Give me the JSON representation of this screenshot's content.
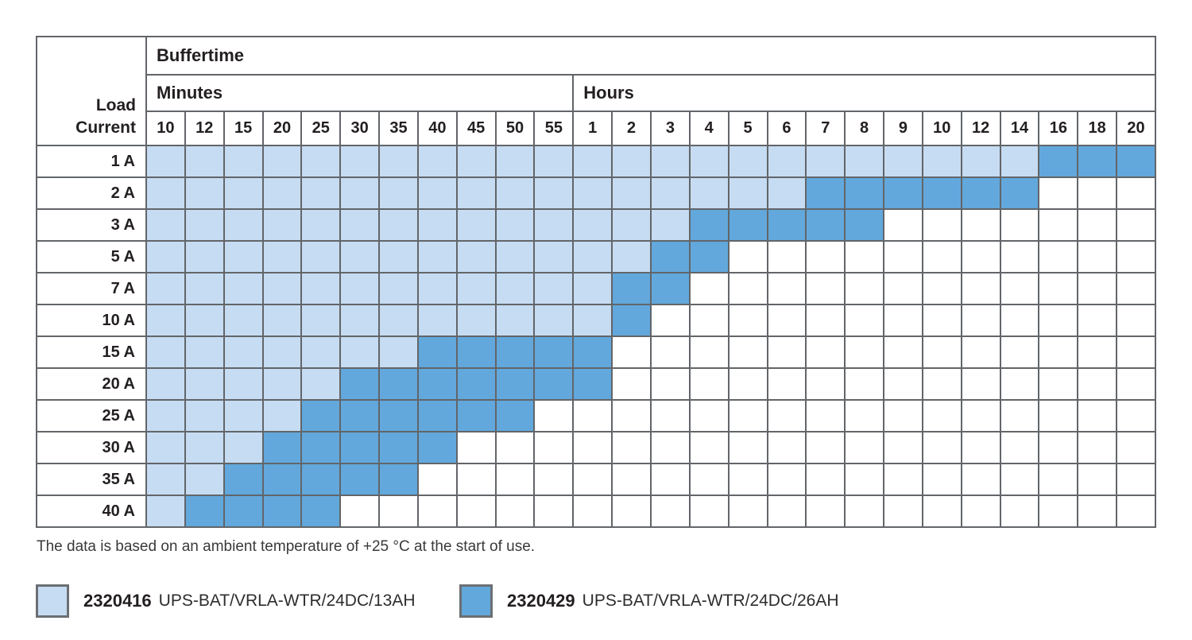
{
  "table": {
    "corner_label": [
      "Load",
      "Current"
    ],
    "buffertime_label": "Buffertime",
    "minutes_label": "Minutes",
    "hours_label": "Hours",
    "minute_cols": [
      "10",
      "12",
      "15",
      "20",
      "25",
      "30",
      "35",
      "40",
      "45",
      "50",
      "55"
    ],
    "hour_cols": [
      "1",
      "2",
      "3",
      "4",
      "5",
      "6",
      "7",
      "8",
      "9",
      "10",
      "12",
      "14",
      "16",
      "18",
      "20"
    ],
    "rows": [
      {
        "load": "1 A",
        "light": 23,
        "dark": 3
      },
      {
        "load": "2 A",
        "light": 17,
        "dark": 6
      },
      {
        "load": "3 A",
        "light": 14,
        "dark": 5
      },
      {
        "load": "5 A",
        "light": 13,
        "dark": 2
      },
      {
        "load": "7 A",
        "light": 12,
        "dark": 2
      },
      {
        "load": "10 A",
        "light": 12,
        "dark": 1
      },
      {
        "load": "15 A",
        "light": 7,
        "dark": 5
      },
      {
        "load": "20 A",
        "light": 5,
        "dark": 7
      },
      {
        "load": "25 A",
        "light": 4,
        "dark": 6
      },
      {
        "load": "30 A",
        "light": 3,
        "dark": 5
      },
      {
        "load": "35 A",
        "light": 2,
        "dark": 5
      },
      {
        "load": "40 A",
        "light": 1,
        "dark": 4
      }
    ]
  },
  "note": "The data is based on an ambient temperature of +25 °C at the start of use.",
  "legend": {
    "items": [
      {
        "code": "2320416",
        "label": "UPS-BAT/VRLA-WTR/24DC/13AH",
        "color": "#C6DCF2"
      },
      {
        "code": "2320429",
        "label": "UPS-BAT/VRLA-WTR/24DC/26AH",
        "color": "#62A8DC"
      }
    ]
  },
  "colors": {
    "light": "#C6DCF2",
    "dark": "#62A8DC",
    "grid": "#626569",
    "frame": "#4F5153"
  },
  "chart_data": {
    "type": "heatmap",
    "title": "Buffertime",
    "y_label": "Load Current",
    "y_categories": [
      "1 A",
      "2 A",
      "3 A",
      "5 A",
      "7 A",
      "10 A",
      "15 A",
      "20 A",
      "25 A",
      "30 A",
      "35 A",
      "40 A"
    ],
    "x_groups": [
      {
        "label": "Minutes",
        "ticks": [
          "10",
          "12",
          "15",
          "20",
          "25",
          "30",
          "35",
          "40",
          "45",
          "50",
          "55"
        ]
      },
      {
        "label": "Hours",
        "ticks": [
          "1",
          "2",
          "3",
          "4",
          "5",
          "6",
          "7",
          "8",
          "9",
          "10",
          "12",
          "14",
          "16",
          "18",
          "20"
        ]
      }
    ],
    "legend": [
      {
        "value": "light",
        "meaning": "2320416 UPS-BAT/VRLA-WTR/24DC/13AH"
      },
      {
        "value": "dark",
        "meaning": "2320429 UPS-BAT/VRLA-WTR/24DC/26AH"
      }
    ],
    "cells_encoding": "Per row across the 26 columns: first light_cols cells are light (13AH battery range), next dark_cols cells are dark (26AH battery only), remaining cells are empty/white.",
    "rows": [
      {
        "load": "1 A",
        "light_cols": 23,
        "dark_cols": 3,
        "max_13AH": "14 h",
        "max_26AH": "20 h"
      },
      {
        "load": "2 A",
        "light_cols": 17,
        "dark_cols": 6,
        "max_13AH": "6 h",
        "max_26AH": "14 h"
      },
      {
        "load": "3 A",
        "light_cols": 14,
        "dark_cols": 5,
        "max_13AH": "3 h",
        "max_26AH": "8 h"
      },
      {
        "load": "5 A",
        "light_cols": 13,
        "dark_cols": 2,
        "max_13AH": "2 h",
        "max_26AH": "4 h"
      },
      {
        "load": "7 A",
        "light_cols": 12,
        "dark_cols": 2,
        "max_13AH": "1 h",
        "max_26AH": "3 h"
      },
      {
        "load": "10 A",
        "light_cols": 12,
        "dark_cols": 1,
        "max_13AH": "1 h",
        "max_26AH": "2 h"
      },
      {
        "load": "15 A",
        "light_cols": 7,
        "dark_cols": 5,
        "max_13AH": "35 min",
        "max_26AH": "1 h"
      },
      {
        "load": "20 A",
        "light_cols": 5,
        "dark_cols": 7,
        "max_13AH": "25 min",
        "max_26AH": "1 h"
      },
      {
        "load": "25 A",
        "light_cols": 4,
        "dark_cols": 6,
        "max_13AH": "20 min",
        "max_26AH": "50 min"
      },
      {
        "load": "30 A",
        "light_cols": 3,
        "dark_cols": 5,
        "max_13AH": "15 min",
        "max_26AH": "40 min"
      },
      {
        "load": "35 A",
        "light_cols": 2,
        "dark_cols": 5,
        "max_13AH": "12 min",
        "max_26AH": "35 min"
      },
      {
        "load": "40 A",
        "light_cols": 1,
        "dark_cols": 4,
        "max_13AH": "10 min",
        "max_26AH": "25 min"
      }
    ]
  }
}
